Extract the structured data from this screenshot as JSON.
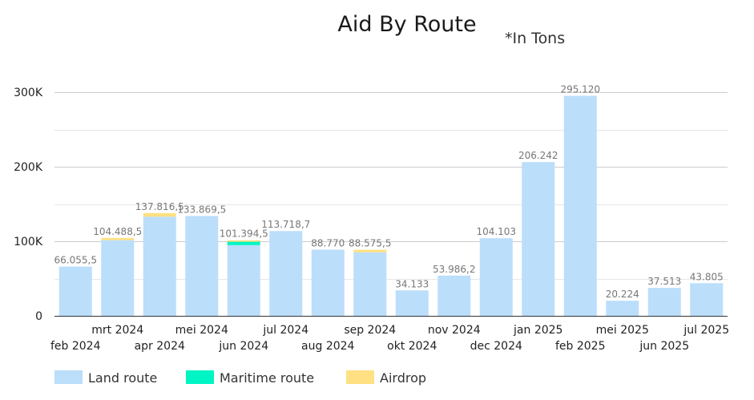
{
  "chart_data": {
    "type": "bar",
    "title": "Aid By Route",
    "subtitle": "*In Tons",
    "categories": [
      "feb 2024",
      "mrt 2024",
      "apr 2024",
      "mei 2024",
      "jun 2024",
      "jul 2024",
      "aug 2024",
      "sep 2024",
      "okt 2024",
      "nov 2024",
      "dec 2024",
      "jan 2025",
      "feb 2025",
      "mei 2025",
      "jun 2025",
      "jul 2025"
    ],
    "series": [
      {
        "name": "Land route",
        "color": "#bbdefb",
        "values": [
          66055.5,
          101500,
          133000,
          133869.5,
          94800,
          113718.7,
          88770,
          85200,
          34133,
          53986.2,
          104103,
          206242,
          295120,
          20224,
          37513,
          43805
        ]
      },
      {
        "name": "Maritime route",
        "color": "#00f5c4",
        "values": [
          0,
          0,
          0,
          0,
          4600,
          0,
          0,
          0,
          0,
          0,
          0,
          0,
          0,
          0,
          0,
          0
        ]
      },
      {
        "name": "Airdrop",
        "color": "#ffe082",
        "values": [
          0,
          2988.5,
          4816.5,
          0,
          1994.5,
          0,
          0,
          3375.5,
          0,
          0,
          0,
          0,
          0,
          0,
          0,
          0
        ]
      }
    ],
    "data_labels": [
      "66.055,5",
      "104.488,5",
      "137.816,5",
      "133.869,5",
      "101.394,5",
      "113.718,7",
      "88.770",
      "88.575,5",
      "34.133",
      "53.986,2",
      "104.103",
      "206.242",
      "295.120",
      "20.224",
      "37.513",
      "43.805"
    ],
    "yticks": [
      {
        "value": 0,
        "label": "0"
      },
      {
        "value": 100000,
        "label": "100K"
      },
      {
        "value": 200000,
        "label": "200K"
      },
      {
        "value": 300000,
        "label": "300K"
      }
    ],
    "ylim": [
      0,
      300000
    ],
    "grid": true,
    "legend_position": "bottom-left"
  }
}
